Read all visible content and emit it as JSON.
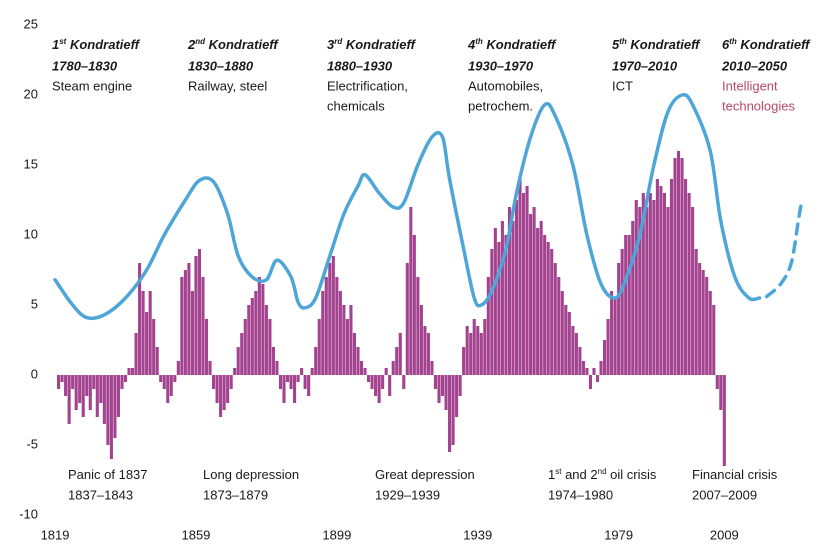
{
  "chart_data": {
    "type": "combo",
    "xlim": [
      1817,
      2039
    ],
    "ylim": [
      -10,
      25
    ],
    "xticks": [
      1819,
      1859,
      1899,
      1939,
      1979,
      2009
    ],
    "yticks": [
      -10,
      -5,
      0,
      5,
      10,
      15,
      20,
      25
    ],
    "series": [
      {
        "type": "bar",
        "color": "#a3438f",
        "x": [
          1820,
          1821,
          1822,
          1823,
          1824,
          1825,
          1826,
          1827,
          1828,
          1829,
          1830,
          1831,
          1832,
          1833,
          1834,
          1835,
          1836,
          1837,
          1838,
          1839,
          1840,
          1841,
          1842,
          1843,
          1844,
          1845,
          1846,
          1847,
          1848,
          1849,
          1850,
          1851,
          1852,
          1853,
          1854,
          1855,
          1856,
          1857,
          1858,
          1859,
          1860,
          1861,
          1862,
          1863,
          1864,
          1865,
          1866,
          1867,
          1868,
          1869,
          1870,
          1871,
          1872,
          1873,
          1874,
          1875,
          1876,
          1877,
          1878,
          1879,
          1880,
          1881,
          1882,
          1883,
          1884,
          1885,
          1886,
          1887,
          1888,
          1889,
          1890,
          1891,
          1892,
          1893,
          1894,
          1895,
          1896,
          1897,
          1898,
          1899,
          1900,
          1901,
          1902,
          1903,
          1904,
          1905,
          1906,
          1907,
          1908,
          1909,
          1910,
          1911,
          1912,
          1913,
          1914,
          1915,
          1916,
          1917,
          1918,
          1919,
          1920,
          1921,
          1922,
          1923,
          1924,
          1925,
          1926,
          1927,
          1928,
          1929,
          1930,
          1931,
          1932,
          1933,
          1934,
          1935,
          1936,
          1937,
          1938,
          1939,
          1940,
          1941,
          1942,
          1943,
          1944,
          1945,
          1946,
          1947,
          1948,
          1949,
          1950,
          1951,
          1952,
          1953,
          1954,
          1955,
          1956,
          1957,
          1958,
          1959,
          1960,
          1961,
          1962,
          1963,
          1964,
          1965,
          1966,
          1967,
          1968,
          1969,
          1970,
          1971,
          1972,
          1973,
          1974,
          1975,
          1976,
          1977,
          1978,
          1979,
          1980,
          1981,
          1982,
          1983,
          1984,
          1985,
          1986,
          1987,
          1988,
          1989,
          1990,
          1991,
          1992,
          1993,
          1994,
          1995,
          1996,
          1997,
          1998,
          1999,
          2000,
          2001,
          2002,
          2003,
          2004,
          2005,
          2006,
          2007,
          2008,
          2009
        ],
        "values": [
          -1,
          -0.5,
          -1.5,
          -3.5,
          -1,
          -2.5,
          -2,
          -3,
          -1.5,
          -2.5,
          -1,
          -3,
          -2,
          -3.5,
          -5,
          -6,
          -4.5,
          -3,
          -1,
          -0.5,
          0.5,
          0.5,
          3,
          8,
          6,
          4.5,
          6,
          4,
          2,
          -0.5,
          -1,
          -2,
          -1.5,
          -0.5,
          1,
          7,
          7.5,
          8,
          6,
          8.5,
          9,
          7,
          4,
          1,
          -1,
          -2,
          -3,
          -2.5,
          -2,
          -1,
          0.5,
          2,
          3,
          4,
          5,
          5.5,
          6,
          7,
          6.5,
          5,
          4,
          2,
          1,
          -1,
          -2,
          -0.5,
          -1,
          -2,
          -0.5,
          0.5,
          -1,
          -1.5,
          0.5,
          2,
          4,
          6,
          7,
          8,
          8.5,
          7,
          6,
          5,
          4,
          5,
          3,
          2,
          1,
          0.5,
          -0.5,
          -1,
          -1.5,
          -2,
          -1,
          0.5,
          -1.5,
          1,
          2,
          3,
          -1,
          8,
          12,
          10,
          7,
          5,
          3.5,
          3,
          1,
          -1,
          -2,
          -1.5,
          -2.5,
          -5.5,
          -5,
          -3,
          -1.5,
          2,
          3.5,
          3,
          4,
          3.5,
          3,
          4,
          7,
          9,
          10.5,
          9.5,
          11,
          10,
          12,
          11,
          12.5,
          14,
          13,
          13.5,
          11.5,
          12,
          10.5,
          11,
          10,
          9.5,
          9,
          8,
          7,
          6,
          5,
          4.5,
          3.5,
          3,
          2,
          1,
          0.5,
          -1,
          0.5,
          -0.5,
          1,
          2.5,
          4,
          6,
          5.5,
          8,
          9,
          10,
          10,
          11,
          12.5,
          12,
          13,
          12,
          13,
          12.5,
          14,
          13.5,
          13,
          12,
          14,
          15.5,
          16,
          15.5,
          14,
          13,
          12,
          9,
          8,
          7.5,
          7,
          6,
          5,
          -1,
          -2.5,
          -6.5
        ]
      },
      {
        "type": "line",
        "color": "#4ea6d8",
        "x": [
          1819,
          1824,
          1828,
          1833,
          1839,
          1845,
          1850,
          1856,
          1860,
          1864,
          1868,
          1871,
          1875,
          1879,
          1882,
          1886,
          1888,
          1890,
          1893,
          1897,
          1901,
          1905,
          1907,
          1911,
          1915,
          1918,
          1922,
          1926,
          1929,
          1931,
          1935,
          1938,
          1940,
          1943,
          1947,
          1950,
          1954,
          1958,
          1961,
          1966,
          1970,
          1974,
          1978,
          1981,
          1985,
          1989,
          1993,
          1997,
          2000,
          2005,
          2008,
          2012,
          2016,
          2019
        ],
        "values": [
          6.8,
          5,
          4.1,
          4.3,
          5.5,
          7.5,
          10,
          12.5,
          13.9,
          13.8,
          11.5,
          8.5,
          7,
          6.8,
          8.2,
          7,
          5.2,
          4.8,
          5.5,
          8.5,
          11.5,
          13.5,
          14.3,
          13,
          12,
          12.3,
          15,
          17,
          17,
          14,
          9,
          5.5,
          5,
          6,
          9,
          13,
          17,
          19.3,
          18.5,
          15,
          10,
          6.5,
          5.5,
          6.8,
          10,
          15,
          18.8,
          20,
          19.3,
          16,
          11,
          7,
          5.5,
          5.5
        ]
      },
      {
        "type": "line",
        "color": "#4ea6d8",
        "dashed": true,
        "x": [
          2021,
          2025,
          2028,
          2030,
          2031
        ],
        "values": [
          5.6,
          6.5,
          8,
          11,
          12.5
        ]
      }
    ],
    "waves": [
      {
        "title": [
          {
            "t": "1"
          },
          {
            "t": "st",
            "sup": true
          },
          {
            "t": " Kondratieff"
          }
        ],
        "period": "1780–1830",
        "tech": [
          "Steam engine"
        ]
      },
      {
        "title": [
          {
            "t": "2"
          },
          {
            "t": "nd",
            "sup": true
          },
          {
            "t": " Kondratieff"
          }
        ],
        "period": "1830–1880",
        "tech": [
          "Railway, steel"
        ]
      },
      {
        "title": [
          {
            "t": "3"
          },
          {
            "t": "rd",
            "sup": true
          },
          {
            "t": " Kondratieff"
          }
        ],
        "period": "1880–1930",
        "tech": [
          "Electrification,",
          "chemicals"
        ]
      },
      {
        "title": [
          {
            "t": "4"
          },
          {
            "t": "th",
            "sup": true
          },
          {
            "t": " Kondratieff"
          }
        ],
        "period": "1930–1970",
        "tech": [
          "Automobiles,",
          "petrochem."
        ]
      },
      {
        "title": [
          {
            "t": "5"
          },
          {
            "t": "th",
            "sup": true
          },
          {
            "t": " Kondratieff"
          }
        ],
        "period": "1970–2010",
        "tech": [
          "ICT"
        ]
      },
      {
        "title": [
          {
            "t": "6"
          },
          {
            "t": "th",
            "sup": true
          },
          {
            "t": " Kondratieff"
          }
        ],
        "period": "2010–2050",
        "tech": [
          "Intelligent",
          "technologies"
        ],
        "tech_color": "#b84a66"
      }
    ],
    "crises": [
      {
        "name": [
          {
            "t": "Panic of 1837"
          }
        ],
        "period": "1837–1843"
      },
      {
        "name": [
          {
            "t": "Long depression"
          }
        ],
        "period": "1873–1879"
      },
      {
        "name": [
          {
            "t": "Great depression"
          }
        ],
        "period": "1929–1939"
      },
      {
        "name": [
          {
            "t": "1"
          },
          {
            "t": "st",
            "sup": true
          },
          {
            "t": " and 2"
          },
          {
            "t": "nd",
            "sup": true
          },
          {
            "t": " oil crisis"
          }
        ],
        "period": "1974–1980"
      },
      {
        "name": [
          {
            "t": "Financial crisis"
          }
        ],
        "period": "2007–2009"
      }
    ]
  }
}
